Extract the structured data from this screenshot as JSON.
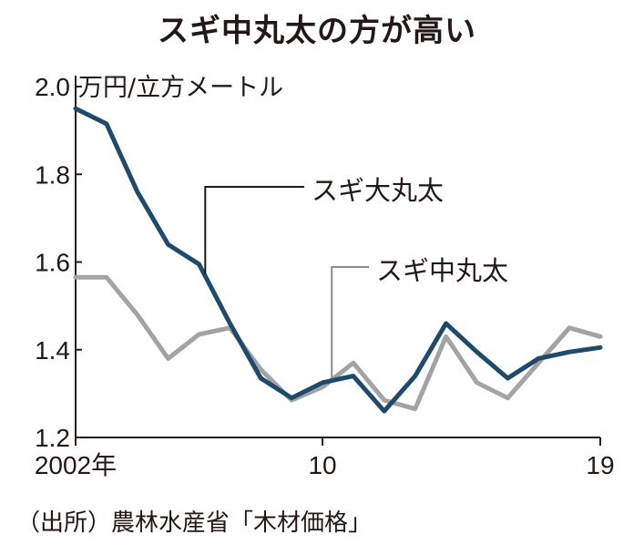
{
  "title": "スギ中丸太の方が高い",
  "source": "（出所）農林水産省「木材価格」",
  "chart_data": {
    "type": "line",
    "unit_label": "万円/立方メートル",
    "ylim": [
      1.2,
      2.0
    ],
    "yticks": [
      {
        "value": 1.2,
        "label": "1.2"
      },
      {
        "value": 1.4,
        "label": "1.4"
      },
      {
        "value": 1.6,
        "label": "1.6"
      },
      {
        "value": 1.8,
        "label": "1.8"
      },
      {
        "value": 2.0,
        "label": "2.0"
      }
    ],
    "x": [
      2002,
      2003,
      2004,
      2005,
      2006,
      2007,
      2008,
      2009,
      2010,
      2011,
      2012,
      2013,
      2014,
      2015,
      2016,
      2017,
      2018,
      2019
    ],
    "xlim": [
      2002,
      2019
    ],
    "xticks": [
      {
        "value": 2002,
        "label": "2002年"
      },
      {
        "value": 2010,
        "label": "10"
      },
      {
        "value": 2019,
        "label": "19"
      }
    ],
    "grid": false,
    "series": [
      {
        "name": "スギ大丸太",
        "color": "#1e4a6b",
        "values": [
          1.95,
          1.915,
          1.76,
          1.64,
          1.595,
          1.46,
          1.335,
          1.29,
          1.325,
          1.34,
          1.26,
          1.34,
          1.46,
          1.395,
          1.335,
          1.38,
          1.395,
          1.405
        ]
      },
      {
        "name": "スギ中丸太",
        "color": "#a3a3a5",
        "values": [
          1.565,
          1.565,
          1.48,
          1.38,
          1.435,
          1.45,
          1.355,
          1.285,
          1.315,
          1.37,
          1.285,
          1.265,
          1.43,
          1.325,
          1.29,
          1.37,
          1.45,
          1.43
        ]
      }
    ]
  }
}
